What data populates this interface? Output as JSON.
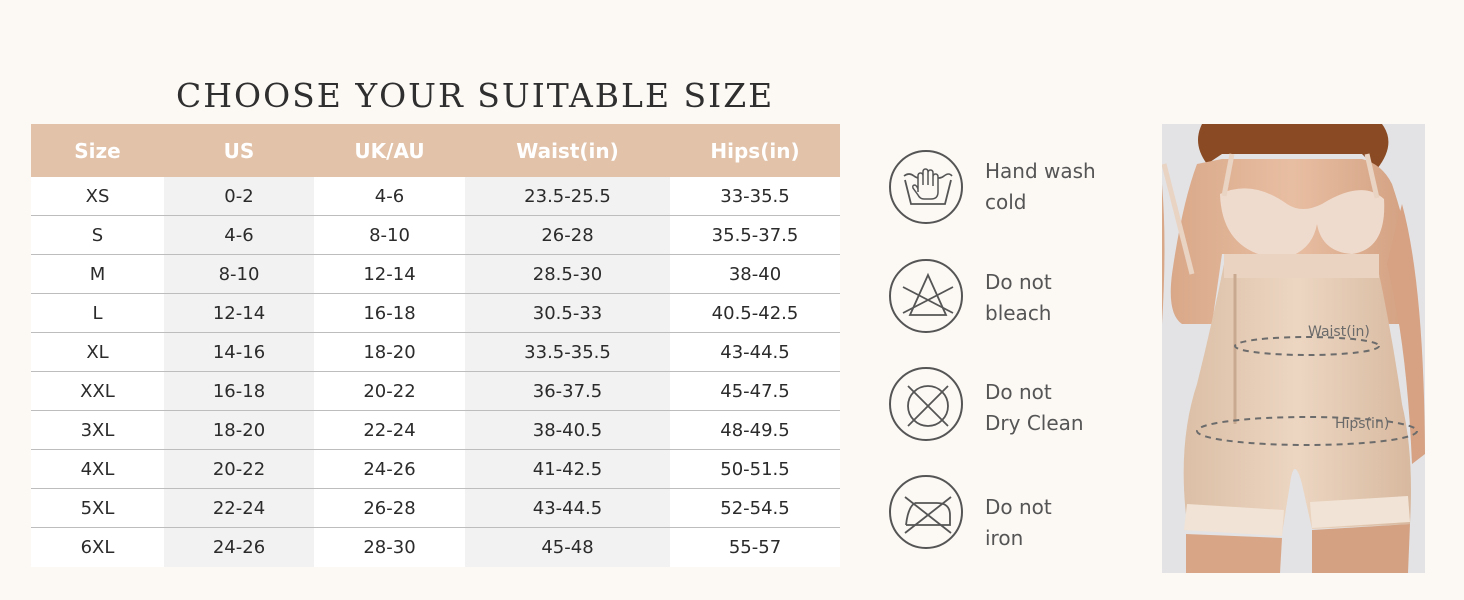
{
  "title": "CHOOSE YOUR SUITABLE SIZE",
  "table": {
    "headers": [
      "Size",
      "US",
      "UK/AU",
      "Waist(in)",
      "Hips(in)"
    ],
    "rows": [
      [
        "XS",
        "0-2",
        "4-6",
        "23.5-25.5",
        "33-35.5"
      ],
      [
        "S",
        "4-6",
        "8-10",
        "26-28",
        "35.5-37.5"
      ],
      [
        "M",
        "8-10",
        "12-14",
        "28.5-30",
        "38-40"
      ],
      [
        "L",
        "12-14",
        "16-18",
        "30.5-33",
        "40.5-42.5"
      ],
      [
        "XL",
        "14-16",
        "18-20",
        "33.5-35.5",
        "43-44.5"
      ],
      [
        "XXL",
        "16-18",
        "20-22",
        "36-37.5",
        "45-47.5"
      ],
      [
        "3XL",
        "18-20",
        "22-24",
        "38-40.5",
        "48-49.5"
      ],
      [
        "4XL",
        "20-22",
        "24-26",
        "41-42.5",
        "50-51.5"
      ],
      [
        "5XL",
        "22-24",
        "26-28",
        "43-44.5",
        "52-54.5"
      ],
      [
        "6XL",
        "24-26",
        "28-30",
        "45-48",
        "55-57"
      ]
    ]
  },
  "care": [
    {
      "icon": "hand-wash-icon",
      "line1": "Hand wash",
      "line2": "cold"
    },
    {
      "icon": "no-bleach-icon",
      "line1": "Do not",
      "line2": "bleach"
    },
    {
      "icon": "no-dry-clean-icon",
      "line1": "Do not",
      "line2": "Dry Clean"
    },
    {
      "icon": "no-iron-icon",
      "line1": "Do not",
      "line2": "iron"
    }
  ],
  "photo": {
    "waist_label": "Waist(in)",
    "hips_label": "Hips(in)"
  },
  "colors": {
    "header_bg": "#e2c2a9",
    "page_bg": "#fcf9f5",
    "shaded_column": "#f2f2f3"
  }
}
